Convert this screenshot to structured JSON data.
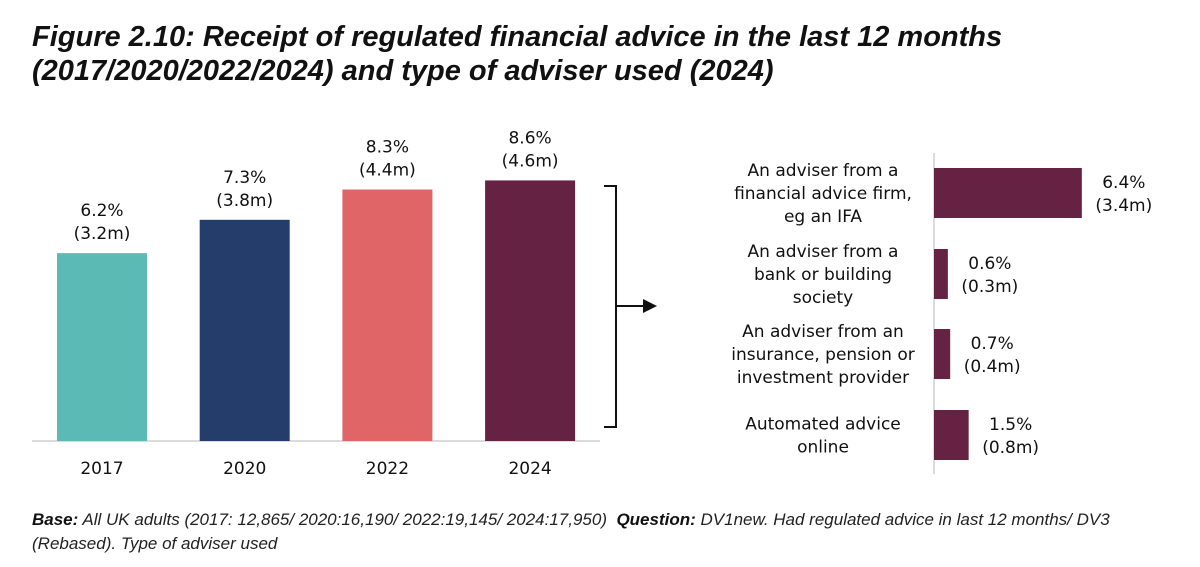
{
  "title_line1": "Figure 2.10: Receipt of regulated financial advice in the last 12 months",
  "title_line2": "(2017/2020/2022/2024) and type of adviser used (2024)",
  "chart_data": [
    {
      "type": "bar",
      "categories": [
        "2017",
        "2020",
        "2022",
        "2024"
      ],
      "values": [
        6.2,
        7.3,
        8.3,
        8.6
      ],
      "value_labels": [
        "6.2%",
        "7.3%",
        "8.3%",
        "8.6%"
      ],
      "sub_labels": [
        "(3.2m)",
        "(3.8m)",
        "(4.4m)",
        "(4.6m)"
      ],
      "colors": [
        "#5bbab3",
        "#243d6a",
        "#e06567",
        "#652242"
      ],
      "ylim": [
        0,
        10
      ],
      "unit": "%"
    },
    {
      "type": "bar",
      "orientation": "horizontal",
      "categories": [
        [
          "An adviser from a",
          "financial advice firm,",
          "eg an IFA"
        ],
        [
          "An adviser from a",
          "bank or building",
          "society"
        ],
        [
          "An adviser from an",
          "insurance, pension or",
          "investment provider"
        ],
        [
          "Automated advice",
          "online"
        ]
      ],
      "values": [
        6.4,
        0.6,
        0.7,
        1.5
      ],
      "value_labels": [
        "6.4%",
        "0.6%",
        "0.7%",
        "1.5%"
      ],
      "sub_labels": [
        "(3.4m)",
        "(0.3m)",
        "(0.4m)",
        "(0.8m)"
      ],
      "color": "#652242",
      "xlim": [
        0,
        10
      ],
      "unit": "%"
    }
  ],
  "footnote": {
    "base_label": "Base:",
    "base_text": " All UK adults (2017: 12,865/ 2020:16,190/ 2022:19,145/ 2024:17,950)",
    "question_label": "Question:",
    "question_text": " DV1new. Had regulated advice in last 12 months/ DV3 (Rebased). Type of adviser used"
  }
}
